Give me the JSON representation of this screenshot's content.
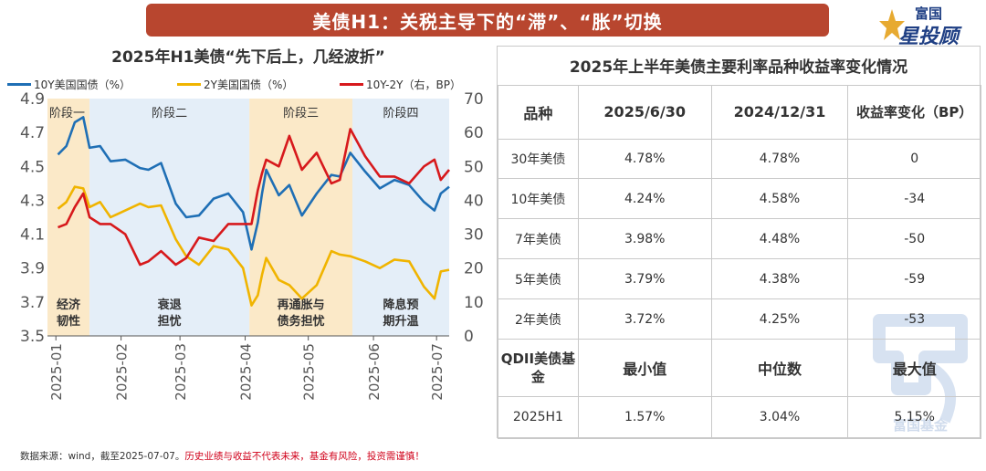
{
  "banner": {
    "title": "美债H1：关税主导下的“滞”、“胀”切换"
  },
  "logo": {
    "top": "富国",
    "bottom": "星投顾",
    "watermark_text": "富国基金"
  },
  "chart_data": {
    "type": "line",
    "title": "2025年H1美债“先下后上，几经波折”",
    "x_tick_labels": [
      "2025-01",
      "2025-02",
      "2025-03",
      "2025-04",
      "2025-05",
      "2025-06",
      "2025-07"
    ],
    "x_tick_dates": [
      "2025-01-01",
      "2025-02-01",
      "2025-03-01",
      "2025-04-01",
      "2025-05-01",
      "2025-06-01",
      "2025-07-01"
    ],
    "xlim": [
      "2024-12-28",
      "2025-07-07"
    ],
    "y_left": {
      "lim": [
        3.5,
        4.9
      ],
      "ticks": [
        "3.5",
        "3.7",
        "3.9",
        "4.1",
        "4.3",
        "4.5",
        "4.7",
        "4.9"
      ]
    },
    "y_right": {
      "lim": [
        0,
        70
      ],
      "ticks": [
        "0",
        "10",
        "20",
        "30",
        "40",
        "50",
        "60",
        "70"
      ]
    },
    "legend_position": "top",
    "phases": [
      {
        "name": "阶段一",
        "label": "阶段一",
        "desc": [
          "经济",
          "韧性"
        ],
        "start": "2024-12-28",
        "end": "2025-01-17",
        "color": "#fbe9c8"
      },
      {
        "name": "阶段二",
        "label": "阶段二",
        "desc": [
          "衰退",
          "担忧"
        ],
        "start": "2025-01-17",
        "end": "2025-04-03",
        "color": "#e4eef8"
      },
      {
        "name": "阶段三",
        "label": "阶段三",
        "desc": [
          "再通胀与",
          "债务担忧"
        ],
        "start": "2025-04-03",
        "end": "2025-05-22",
        "color": "#fbe9c8"
      },
      {
        "name": "阶段四",
        "label": "阶段四",
        "desc": [
          "降息预",
          "期升温"
        ],
        "start": "2025-05-22",
        "end": "2025-07-07",
        "color": "#e4eef8"
      }
    ],
    "series": [
      {
        "name": "10Y美国国债（%）",
        "axis": "left",
        "color": "#1f6fb5",
        "x": [
          "2025-01-02",
          "2025-01-06",
          "2025-01-10",
          "2025-01-14",
          "2025-01-17",
          "2025-01-22",
          "2025-01-27",
          "2025-02-03",
          "2025-02-10",
          "2025-02-14",
          "2025-02-20",
          "2025-02-27",
          "2025-03-04",
          "2025-03-10",
          "2025-03-17",
          "2025-03-24",
          "2025-03-31",
          "2025-04-04",
          "2025-04-07",
          "2025-04-09",
          "2025-04-11",
          "2025-04-17",
          "2025-04-22",
          "2025-04-28",
          "2025-05-05",
          "2025-05-12",
          "2025-05-16",
          "2025-05-21",
          "2025-05-28",
          "2025-06-04",
          "2025-06-11",
          "2025-06-18",
          "2025-06-25",
          "2025-06-30",
          "2025-07-03",
          "2025-07-07"
        ],
        "y": [
          4.57,
          4.62,
          4.76,
          4.79,
          4.61,
          4.62,
          4.53,
          4.54,
          4.49,
          4.48,
          4.52,
          4.28,
          4.2,
          4.21,
          4.31,
          4.34,
          4.23,
          4.01,
          4.17,
          4.34,
          4.48,
          4.33,
          4.39,
          4.21,
          4.34,
          4.45,
          4.44,
          4.58,
          4.47,
          4.37,
          4.42,
          4.39,
          4.29,
          4.24,
          4.34,
          4.38
        ]
      },
      {
        "name": "2Y美国国债（%）",
        "axis": "left",
        "color": "#f0b400",
        "x": [
          "2025-01-02",
          "2025-01-06",
          "2025-01-10",
          "2025-01-14",
          "2025-01-17",
          "2025-01-22",
          "2025-01-27",
          "2025-02-03",
          "2025-02-10",
          "2025-02-14",
          "2025-02-20",
          "2025-02-27",
          "2025-03-04",
          "2025-03-10",
          "2025-03-17",
          "2025-03-24",
          "2025-03-31",
          "2025-04-04",
          "2025-04-07",
          "2025-04-09",
          "2025-04-11",
          "2025-04-17",
          "2025-04-22",
          "2025-04-28",
          "2025-05-05",
          "2025-05-12",
          "2025-05-16",
          "2025-05-21",
          "2025-05-28",
          "2025-06-04",
          "2025-06-11",
          "2025-06-18",
          "2025-06-25",
          "2025-06-30",
          "2025-07-03",
          "2025-07-07"
        ],
        "y": [
          4.25,
          4.29,
          4.38,
          4.37,
          4.26,
          4.29,
          4.2,
          4.24,
          4.28,
          4.26,
          4.27,
          4.07,
          3.97,
          3.92,
          4.03,
          4.01,
          3.9,
          3.68,
          3.74,
          3.86,
          3.96,
          3.83,
          3.8,
          3.72,
          3.8,
          4.0,
          3.98,
          3.97,
          3.94,
          3.9,
          3.95,
          3.94,
          3.79,
          3.72,
          3.88,
          3.89
        ]
      },
      {
        "name": "10Y-2Y（右，BP）",
        "axis": "right",
        "color": "#d7191c",
        "x": [
          "2025-01-02",
          "2025-01-06",
          "2025-01-10",
          "2025-01-14",
          "2025-01-17",
          "2025-01-22",
          "2025-01-27",
          "2025-02-03",
          "2025-02-10",
          "2025-02-14",
          "2025-02-20",
          "2025-02-27",
          "2025-03-04",
          "2025-03-10",
          "2025-03-17",
          "2025-03-24",
          "2025-03-31",
          "2025-04-04",
          "2025-04-07",
          "2025-04-09",
          "2025-04-11",
          "2025-04-17",
          "2025-04-22",
          "2025-04-28",
          "2025-05-05",
          "2025-05-12",
          "2025-05-16",
          "2025-05-21",
          "2025-05-28",
          "2025-06-04",
          "2025-06-11",
          "2025-06-18",
          "2025-06-25",
          "2025-06-30",
          "2025-07-03",
          "2025-07-07"
        ],
        "y": [
          32,
          33,
          38,
          42,
          35,
          33,
          33,
          30,
          21,
          22,
          25,
          21,
          23,
          29,
          28,
          33,
          33,
          33,
          43,
          48,
          52,
          50,
          59,
          49,
          54,
          45,
          46,
          61,
          53,
          47,
          47,
          45,
          50,
          52,
          46,
          49
        ]
      }
    ]
  },
  "table": {
    "title": "2025年上半年美债主要利率品种收益率变化情况",
    "headers": [
      "品种",
      "2025/6/30",
      "2024/12/31",
      "收益率变化（BP）"
    ],
    "rows": [
      [
        "30年美债",
        "4.78%",
        "4.78%",
        "0"
      ],
      [
        "10年美债",
        "4.24%",
        "4.58%",
        "-34"
      ],
      [
        "7年美债",
        "3.98%",
        "4.48%",
        "-50"
      ],
      [
        "5年美债",
        "3.79%",
        "4.38%",
        "-59"
      ],
      [
        "2年美债",
        "3.72%",
        "4.25%",
        "-53"
      ]
    ],
    "headers2": [
      "QDII美债基金",
      "最小值",
      "中位数",
      "最大值"
    ],
    "rows2": [
      [
        "2025H1",
        "1.57%",
        "3.04%",
        "5.15%"
      ]
    ],
    "colors": {
      "negative": "#d0021b",
      "border": "#c9c9c9"
    }
  },
  "source": {
    "text": "数据来源：wind，截至2025-07-07。",
    "warning": "历史业绩与收益不代表未来，基金有风险，投资需谨慎！"
  }
}
